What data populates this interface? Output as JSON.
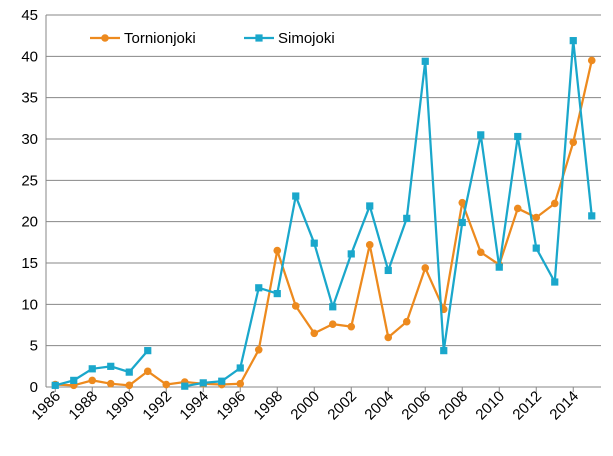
{
  "chart_data": {
    "type": "line",
    "title": "",
    "xlabel": "",
    "ylabel": "",
    "ylim": [
      0,
      45
    ],
    "yticks": [
      0,
      5,
      10,
      15,
      20,
      25,
      30,
      35,
      40,
      45
    ],
    "xlim": [
      1986,
      2015
    ],
    "xtick_labels": [
      "1986",
      "1988",
      "1990",
      "1992",
      "1994",
      "1996",
      "1998",
      "2000",
      "2002",
      "2004",
      "2006",
      "2008",
      "2010",
      "2012",
      "2014"
    ],
    "grid": "horizontal",
    "legend_position": "top-left",
    "x": [
      1986,
      1987,
      1988,
      1989,
      1990,
      1991,
      1992,
      1993,
      1994,
      1995,
      1996,
      1997,
      1998,
      1999,
      2000,
      2001,
      2002,
      2003,
      2004,
      2005,
      2006,
      2007,
      2008,
      2009,
      2010,
      2011,
      2012,
      2013,
      2014,
      2015
    ],
    "series": [
      {
        "name": "Tornionjoki",
        "color": "#ED8A1E",
        "marker": "circle",
        "values": [
          0.3,
          0.2,
          0.8,
          0.4,
          0.2,
          1.9,
          0.3,
          0.6,
          0.4,
          0.3,
          0.4,
          4.5,
          16.5,
          9.8,
          6.5,
          7.6,
          7.3,
          17.2,
          6.0,
          7.9,
          14.4,
          9.4,
          22.3,
          16.3,
          14.8,
          21.6,
          20.5,
          22.2,
          29.6,
          39.5
        ]
      },
      {
        "name": "Simojoki",
        "color": "#1AA7CB",
        "marker": "square",
        "values": [
          0.2,
          0.8,
          2.2,
          2.5,
          1.8,
          4.4,
          null,
          0.1,
          0.5,
          0.7,
          2.3,
          12.0,
          11.3,
          23.1,
          17.4,
          9.7,
          16.1,
          21.9,
          14.1,
          20.4,
          39.4,
          4.4,
          19.9,
          30.5,
          14.5,
          30.3,
          16.8,
          12.7,
          41.9,
          20.7
        ]
      }
    ]
  }
}
